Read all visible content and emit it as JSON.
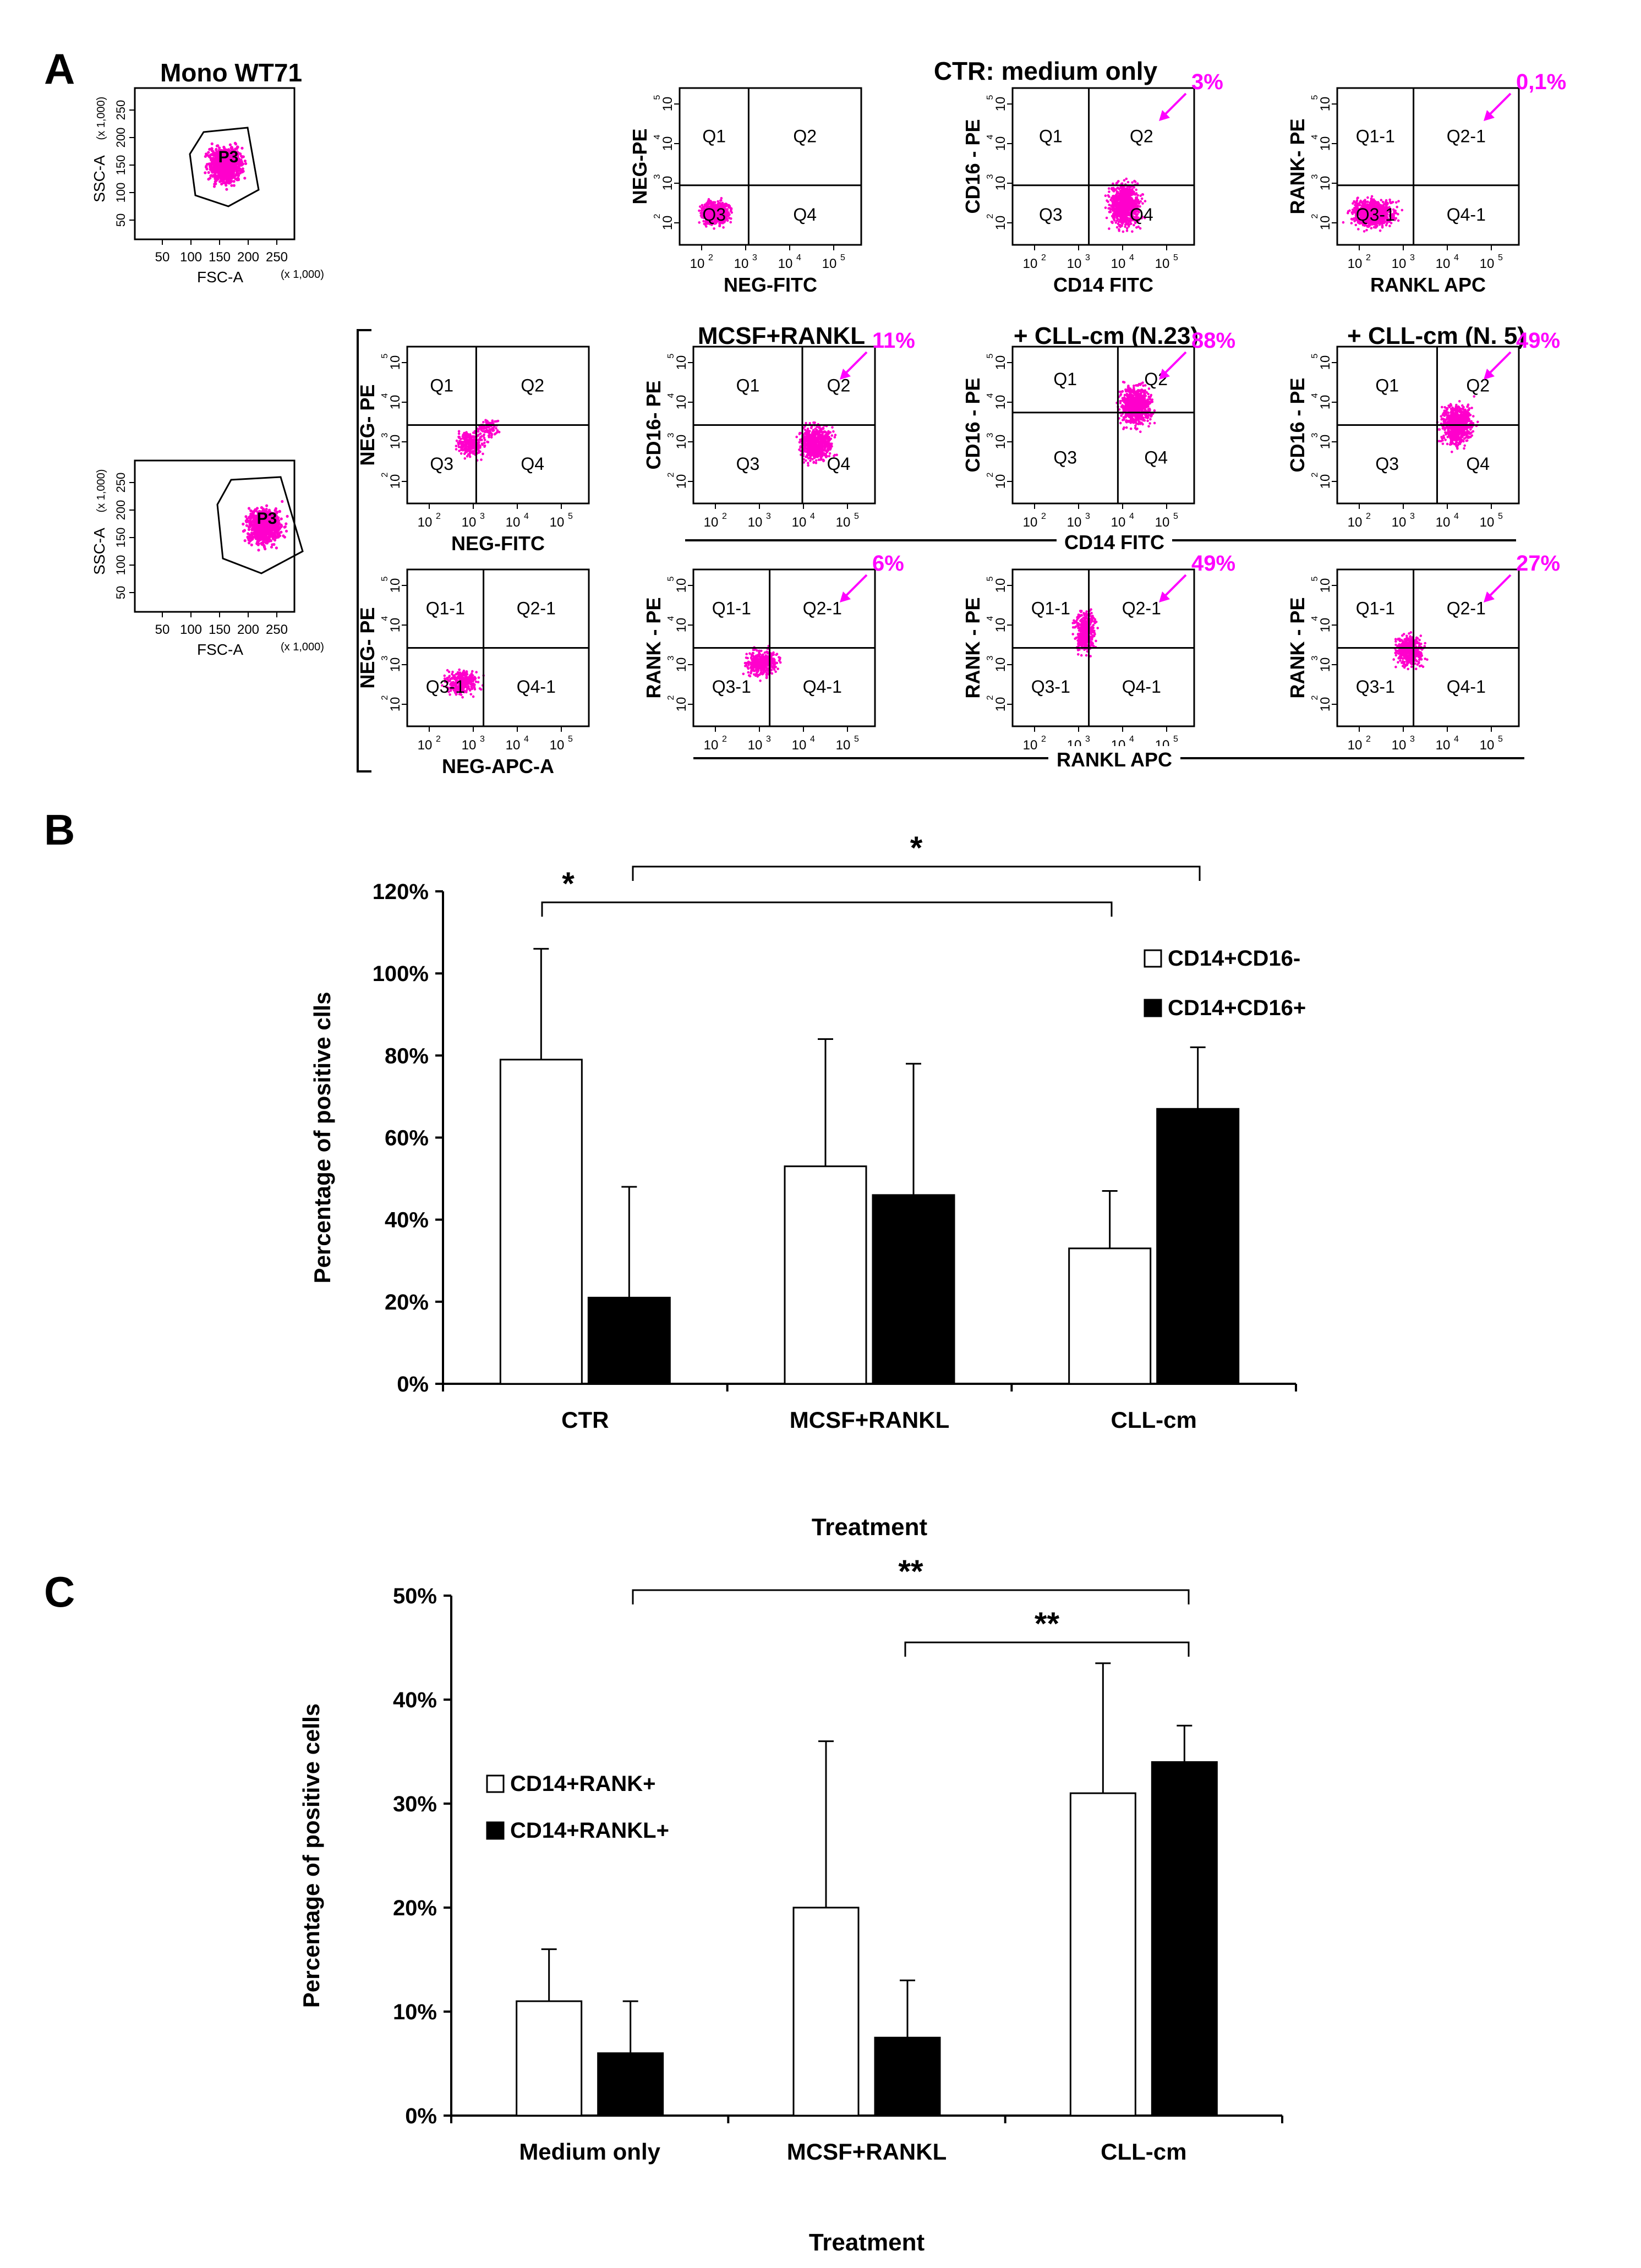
{
  "panel_labels": {
    "a": "A",
    "b": "B",
    "c": "C"
  },
  "colors": {
    "dots": "#ff00cc",
    "annotation": "#ff00ff",
    "black": "#000000",
    "white": "#ffffff"
  },
  "panel_a": {
    "gates": [
      {
        "title": "Mono WT71",
        "x_label": "FSC-A",
        "x_unit": "(x 1,000)",
        "y_label": "SSC-A",
        "y_unit": "(x 1,000)",
        "gate": "P3",
        "x_ticks": [
          "50",
          "100",
          "150",
          "200",
          "250"
        ],
        "y_ticks": [
          "50",
          "100",
          "150",
          "200",
          "250"
        ]
      },
      {
        "title": "",
        "x_label": "FSC-A",
        "x_unit": "(x 1,000)",
        "y_label": "SSC-A",
        "y_unit": "(x 1,000)",
        "gate": "P3",
        "x_ticks": [
          "50",
          "100",
          "150",
          "200",
          "250"
        ],
        "y_ticks": [
          "50",
          "100",
          "150",
          "200",
          "250"
        ]
      }
    ],
    "log_ticks": [
      "10",
      "10",
      "10",
      "10"
    ],
    "log_exps": [
      "2",
      "3",
      "4",
      "5"
    ],
    "row_titles": [
      "CTR: medium only",
      "MCSF+RANKL",
      "+ CLL-cm (N.23)",
      "+ CLL-cm (N. 5)"
    ],
    "plots": [
      {
        "id": "ctr-neg",
        "xlabel": "NEG-FITC",
        "ylabel": "NEG-PE",
        "quadrants": [
          "Q1",
          "Q2",
          "Q3",
          "Q4"
        ],
        "percent": ""
      },
      {
        "id": "ctr-cd16",
        "xlabel": "CD14 FITC",
        "ylabel": "CD16 - PE",
        "quadrants": [
          "Q1",
          "Q2",
          "Q3",
          "Q4"
        ],
        "percent": "3%"
      },
      {
        "id": "ctr-rank",
        "xlabel": "RANKL APC",
        "ylabel": "RANK- PE",
        "quadrants": [
          "Q1-1",
          "Q2-1",
          "Q3-1",
          "Q4-1"
        ],
        "percent": "0,1%"
      },
      {
        "id": "iso-fitc",
        "xlabel": "NEG-FITC",
        "ylabel": "NEG- PE",
        "quadrants": [
          "Q1",
          "Q2",
          "Q3",
          "Q4"
        ],
        "percent": ""
      },
      {
        "id": "mcsf-cd16",
        "xlabel": "",
        "ylabel": "CD16- PE",
        "quadrants": [
          "Q1",
          "Q2",
          "Q3",
          "Q4"
        ],
        "percent": "11%"
      },
      {
        "id": "cll23-cd16",
        "xlabel": "",
        "ylabel": "CD16 - PE",
        "quadrants": [
          "Q1",
          "Q2",
          "Q3",
          "Q4"
        ],
        "percent": "88%"
      },
      {
        "id": "cll5-cd16",
        "xlabel": "",
        "ylabel": "CD16 - PE",
        "quadrants": [
          "Q1",
          "Q2",
          "Q3",
          "Q4"
        ],
        "percent": "49%"
      },
      {
        "id": "iso-apc",
        "xlabel": "NEG-APC-A",
        "ylabel": "NEG- PE",
        "quadrants": [
          "Q1-1",
          "Q2-1",
          "Q3-1",
          "Q4-1"
        ],
        "percent": ""
      },
      {
        "id": "mcsf-rank",
        "xlabel": "",
        "ylabel": "RANK - PE",
        "quadrants": [
          "Q1-1",
          "Q2-1",
          "Q3-1",
          "Q4-1"
        ],
        "percent": "6%"
      },
      {
        "id": "cll23-rank",
        "xlabel": "",
        "ylabel": "RANK - PE",
        "quadrants": [
          "Q1-1",
          "Q2-1",
          "Q3-1",
          "Q4-1"
        ],
        "percent": "49%"
      },
      {
        "id": "cll5-rank",
        "xlabel": "",
        "ylabel": "RANK - PE",
        "quadrants": [
          "Q1-1",
          "Q2-1",
          "Q3-1",
          "Q4-1"
        ],
        "percent": "27%"
      }
    ],
    "shared_xlabels": {
      "cd14": "CD14 FITC",
      "rankl": "RANKL APC"
    }
  },
  "chart_data": [
    {
      "type": "bar",
      "panel": "B",
      "title": "",
      "xlabel": "Treatment",
      "ylabel": "Percentage of  positive clls",
      "categories": [
        "CTR",
        "MCSF+RANKL",
        "CLL-cm"
      ],
      "series": [
        {
          "name": "CD14+CD16-",
          "color": "#ffffff",
          "values": [
            79,
            53,
            33
          ],
          "error_upper": [
            106,
            84,
            47
          ]
        },
        {
          "name": "CD14+CD16+",
          "color": "#000000",
          "values": [
            21,
            46,
            67
          ],
          "error_upper": [
            48,
            78,
            82
          ]
        }
      ],
      "ylim": [
        0,
        120
      ],
      "yticks": [
        "0%",
        "20%",
        "40%",
        "60%",
        "80%",
        "100%",
        "120%"
      ],
      "significance": [
        {
          "from": "CTR",
          "to": "CLL-cm",
          "label": "*"
        },
        {
          "from": "CTR",
          "to": "CLL-cm",
          "label": "*"
        }
      ],
      "legend": "right"
    },
    {
      "type": "bar",
      "panel": "C",
      "title": "",
      "xlabel": "Treatment",
      "ylabel": "Percentage of positive cells",
      "categories": [
        "Medium only",
        "MCSF+RANKL",
        "CLL-cm"
      ],
      "series": [
        {
          "name": "CD14+RANK+",
          "color": "#ffffff",
          "values": [
            11,
            20,
            31
          ],
          "error_upper": [
            16,
            36,
            43.5
          ]
        },
        {
          "name": "CD14+RANKL+",
          "color": "#000000",
          "values": [
            6,
            7.5,
            34
          ],
          "error_upper": [
            11,
            13,
            37.5
          ]
        }
      ],
      "ylim": [
        0,
        50
      ],
      "yticks": [
        "0%",
        "10%",
        "20%",
        "30%",
        "40%",
        "50%"
      ],
      "significance": [
        {
          "from": "Medium only",
          "to": "CLL-cm",
          "label": "**"
        },
        {
          "from": "MCSF+RANKL",
          "to": "CLL-cm",
          "label": "**"
        }
      ],
      "legend": "left"
    }
  ]
}
